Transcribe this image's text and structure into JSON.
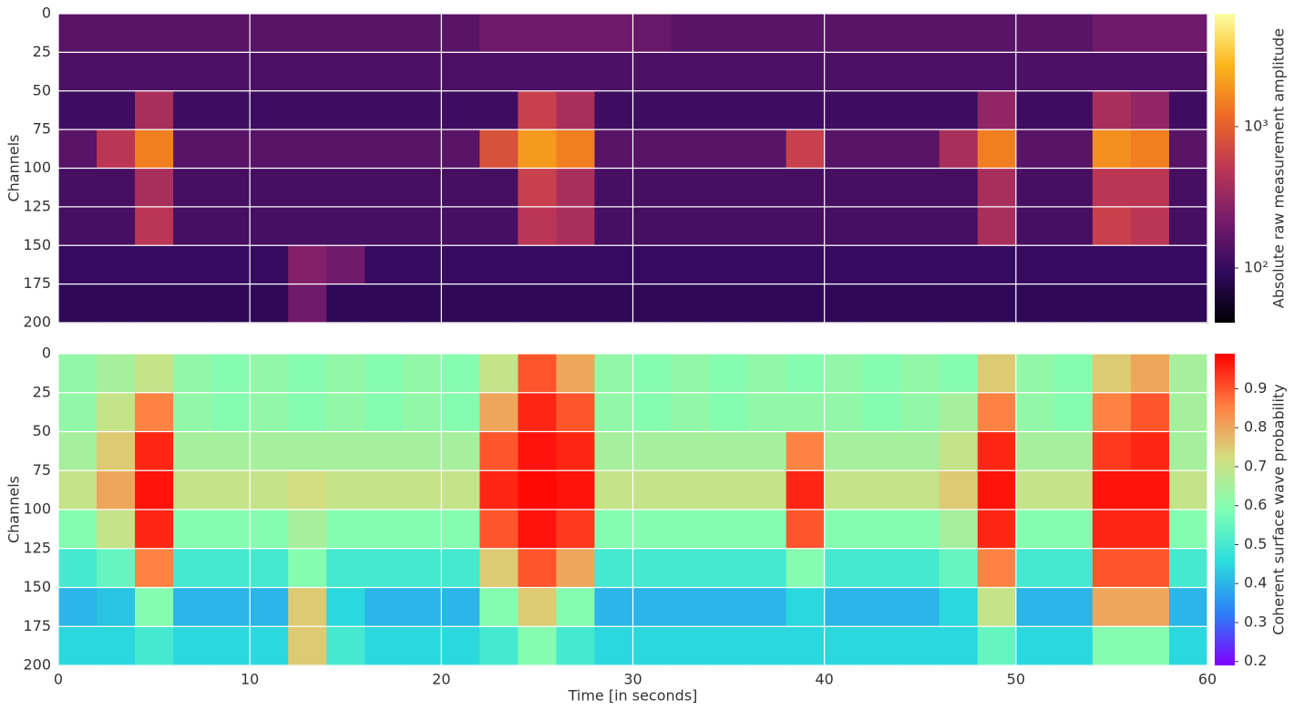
{
  "chart_data": [
    {
      "type": "heatmap",
      "ylabel": "Channels",
      "xlim": [
        0,
        60
      ],
      "ylim": [
        200,
        0
      ],
      "xticks": [
        0,
        10,
        20,
        30,
        40,
        50,
        60
      ],
      "show_xtick_labels": false,
      "yticks": [
        0,
        25,
        50,
        75,
        100,
        125,
        150,
        175,
        200
      ],
      "grid": true,
      "colorbar": {
        "label": "Absolute raw measurement amplitude",
        "colormap": "inferno",
        "scale": "log",
        "lim": [
          41,
          6300
        ],
        "ticks": [
          {
            "value": 100,
            "label": "10²"
          },
          {
            "value": 1000,
            "label": "10³"
          }
        ]
      },
      "z": [
        [
          150,
          150,
          150,
          150,
          150,
          150,
          150,
          150,
          150,
          150,
          150,
          200,
          200,
          200,
          200,
          180,
          150,
          150,
          150,
          150,
          150,
          150,
          150,
          150,
          150,
          150,
          150,
          200,
          200,
          200
        ],
        [
          130,
          130,
          130,
          130,
          130,
          130,
          130,
          130,
          130,
          130,
          130,
          130,
          130,
          130,
          130,
          130,
          130,
          130,
          130,
          130,
          130,
          130,
          130,
          130,
          130,
          130,
          130,
          130,
          130,
          130
        ],
        [
          110,
          110,
          400,
          110,
          110,
          110,
          110,
          110,
          110,
          110,
          110,
          110,
          600,
          400,
          110,
          110,
          110,
          110,
          110,
          110,
          110,
          110,
          110,
          110,
          300,
          110,
          110,
          400,
          300,
          110
        ],
        [
          150,
          500,
          1500,
          150,
          150,
          150,
          150,
          150,
          150,
          150,
          150,
          800,
          2000,
          1500,
          150,
          150,
          150,
          150,
          150,
          600,
          150,
          150,
          150,
          400,
          1500,
          150,
          150,
          1800,
          1500,
          150
        ],
        [
          120,
          120,
          400,
          120,
          120,
          120,
          120,
          120,
          120,
          120,
          120,
          120,
          600,
          400,
          120,
          120,
          120,
          120,
          120,
          120,
          120,
          120,
          120,
          120,
          400,
          120,
          120,
          500,
          500,
          120
        ],
        [
          120,
          120,
          500,
          120,
          120,
          120,
          120,
          120,
          120,
          120,
          120,
          120,
          500,
          400,
          120,
          120,
          120,
          120,
          120,
          120,
          120,
          120,
          120,
          120,
          400,
          120,
          120,
          600,
          500,
          120
        ],
        [
          100,
          100,
          100,
          100,
          100,
          100,
          250,
          200,
          100,
          100,
          100,
          100,
          100,
          100,
          100,
          100,
          100,
          100,
          100,
          100,
          100,
          100,
          100,
          100,
          100,
          100,
          100,
          100,
          100,
          100
        ],
        [
          90,
          90,
          90,
          90,
          90,
          90,
          200,
          90,
          90,
          90,
          90,
          90,
          90,
          90,
          90,
          90,
          90,
          90,
          90,
          90,
          90,
          90,
          90,
          90,
          90,
          90,
          90,
          90,
          90,
          90
        ]
      ]
    },
    {
      "type": "heatmap",
      "ylabel": "Channels",
      "xlabel": "Time [in seconds]",
      "xlim": [
        0,
        60
      ],
      "ylim": [
        200,
        0
      ],
      "xticks": [
        0,
        10,
        20,
        30,
        40,
        50,
        60
      ],
      "show_xtick_labels": true,
      "yticks": [
        0,
        25,
        50,
        75,
        100,
        125,
        150,
        175,
        200
      ],
      "grid": true,
      "colorbar": {
        "label": "Coherent surface wave probability",
        "colormap": "rainbow",
        "scale": "linear",
        "lim": [
          0.19,
          0.99
        ],
        "ticks": [
          0.2,
          0.3,
          0.4,
          0.5,
          0.6,
          0.7,
          0.8,
          0.9
        ]
      },
      "z": [
        [
          0.62,
          0.65,
          0.7,
          0.62,
          0.6,
          0.62,
          0.6,
          0.62,
          0.6,
          0.62,
          0.6,
          0.7,
          0.9,
          0.8,
          0.62,
          0.6,
          0.62,
          0.6,
          0.62,
          0.6,
          0.62,
          0.6,
          0.62,
          0.6,
          0.75,
          0.62,
          0.6,
          0.75,
          0.8,
          0.65
        ],
        [
          0.62,
          0.7,
          0.85,
          0.62,
          0.6,
          0.62,
          0.6,
          0.62,
          0.6,
          0.62,
          0.6,
          0.8,
          0.95,
          0.9,
          0.62,
          0.6,
          0.62,
          0.6,
          0.62,
          0.62,
          0.62,
          0.6,
          0.62,
          0.65,
          0.85,
          0.62,
          0.6,
          0.85,
          0.9,
          0.65
        ],
        [
          0.65,
          0.75,
          0.95,
          0.65,
          0.65,
          0.65,
          0.65,
          0.65,
          0.65,
          0.65,
          0.65,
          0.9,
          0.97,
          0.95,
          0.65,
          0.65,
          0.65,
          0.65,
          0.65,
          0.85,
          0.65,
          0.65,
          0.65,
          0.7,
          0.95,
          0.65,
          0.65,
          0.93,
          0.95,
          0.65
        ],
        [
          0.7,
          0.8,
          0.97,
          0.7,
          0.7,
          0.7,
          0.72,
          0.7,
          0.7,
          0.7,
          0.7,
          0.95,
          0.98,
          0.97,
          0.7,
          0.7,
          0.7,
          0.7,
          0.7,
          0.95,
          0.7,
          0.7,
          0.7,
          0.75,
          0.97,
          0.7,
          0.7,
          0.97,
          0.97,
          0.7
        ],
        [
          0.6,
          0.7,
          0.95,
          0.6,
          0.6,
          0.6,
          0.65,
          0.6,
          0.6,
          0.6,
          0.6,
          0.9,
          0.97,
          0.93,
          0.6,
          0.6,
          0.6,
          0.6,
          0.6,
          0.9,
          0.6,
          0.6,
          0.6,
          0.65,
          0.95,
          0.6,
          0.6,
          0.95,
          0.95,
          0.6
        ],
        [
          0.5,
          0.55,
          0.85,
          0.5,
          0.5,
          0.5,
          0.6,
          0.5,
          0.5,
          0.5,
          0.5,
          0.75,
          0.9,
          0.8,
          0.5,
          0.5,
          0.5,
          0.5,
          0.5,
          0.6,
          0.5,
          0.5,
          0.5,
          0.55,
          0.85,
          0.5,
          0.5,
          0.9,
          0.9,
          0.5
        ],
        [
          0.4,
          0.42,
          0.6,
          0.4,
          0.4,
          0.4,
          0.75,
          0.45,
          0.4,
          0.4,
          0.4,
          0.6,
          0.75,
          0.6,
          0.4,
          0.4,
          0.4,
          0.4,
          0.4,
          0.45,
          0.4,
          0.4,
          0.4,
          0.45,
          0.7,
          0.4,
          0.4,
          0.8,
          0.8,
          0.4
        ],
        [
          0.45,
          0.45,
          0.5,
          0.45,
          0.45,
          0.45,
          0.75,
          0.5,
          0.45,
          0.45,
          0.45,
          0.5,
          0.6,
          0.5,
          0.45,
          0.45,
          0.45,
          0.45,
          0.45,
          0.45,
          0.45,
          0.45,
          0.45,
          0.45,
          0.55,
          0.45,
          0.45,
          0.6,
          0.6,
          0.45
        ]
      ]
    }
  ]
}
